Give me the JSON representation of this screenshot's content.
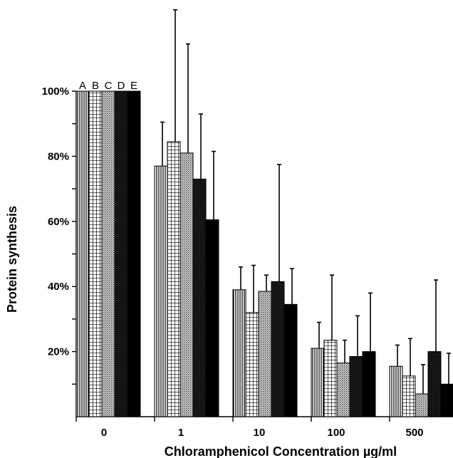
{
  "chart_data": {
    "type": "bar",
    "xlabel": "Chloramphenicol Concentration µg/ml",
    "ylabel": "Protein synthesis",
    "categories": [
      "0",
      "1",
      "10",
      "100",
      "500"
    ],
    "ylim": [
      0,
      100
    ],
    "yticks": [
      {
        "value": 20,
        "label": "20%"
      },
      {
        "value": 40,
        "label": "40%"
      },
      {
        "value": 60,
        "label": "60%"
      },
      {
        "value": 80,
        "label": "80%"
      },
      {
        "value": 100,
        "label": "100%"
      }
    ],
    "grid": false,
    "legend_placement": "above first group",
    "series": [
      {
        "name": "A",
        "pattern": "vertical-lines",
        "values": [
          100,
          77,
          39,
          21,
          15.5
        ],
        "error_upper": [
          100,
          90.5,
          46,
          29,
          22
        ]
      },
      {
        "name": "B",
        "pattern": "grid",
        "values": [
          100,
          84.5,
          32,
          23.5,
          12.5
        ],
        "error_upper": [
          100,
          125,
          46.5,
          43.5,
          24
        ]
      },
      {
        "name": "C",
        "pattern": "dots",
        "values": [
          100,
          81,
          38.5,
          16.5,
          7
        ],
        "error_upper": [
          100,
          114.5,
          43.5,
          23.5,
          16
        ]
      },
      {
        "name": "D",
        "pattern": "dark-stipple",
        "values": [
          100,
          73,
          41.5,
          18.5,
          20
        ],
        "error_upper": [
          100,
          93,
          77.5,
          31,
          42
        ]
      },
      {
        "name": "E",
        "pattern": "solid-black",
        "values": [
          100,
          60.5,
          34.5,
          20,
          10
        ],
        "error_upper": [
          100,
          81.5,
          45.5,
          38,
          19.5
        ]
      }
    ]
  }
}
